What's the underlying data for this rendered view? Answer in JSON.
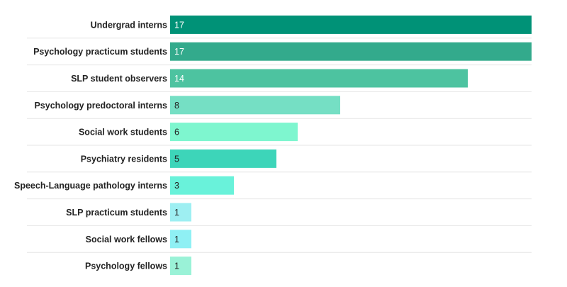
{
  "chart_data": {
    "type": "bar",
    "orientation": "horizontal",
    "categories": [
      "Undergrad interns",
      "Psychology practicum students",
      "SLP student observers",
      "Psychology predoctoral interns",
      "Social work students",
      "Psychiatry residents",
      "Speech-Language pathology interns",
      "SLP practicum students",
      "Social work fellows",
      "Psychology fellows"
    ],
    "values": [
      17,
      17,
      14,
      8,
      6,
      5,
      3,
      1,
      1,
      1
    ],
    "data_labels": [
      "17",
      "17",
      "14",
      "8",
      "6",
      "5",
      "3",
      "1",
      "1",
      "1"
    ],
    "colors": [
      "#009277",
      "#33aa8c",
      "#4dc3a0",
      "#75dfc4",
      "#7ef6cf",
      "#3dd5b9",
      "#69f2da",
      "#9eeff2",
      "#8ff0f4",
      "#9af2d7"
    ],
    "xlim": [
      0,
      17
    ],
    "title": "",
    "xlabel": "",
    "ylabel": "",
    "grid": "horizontal separators between rows",
    "legend": "none"
  }
}
